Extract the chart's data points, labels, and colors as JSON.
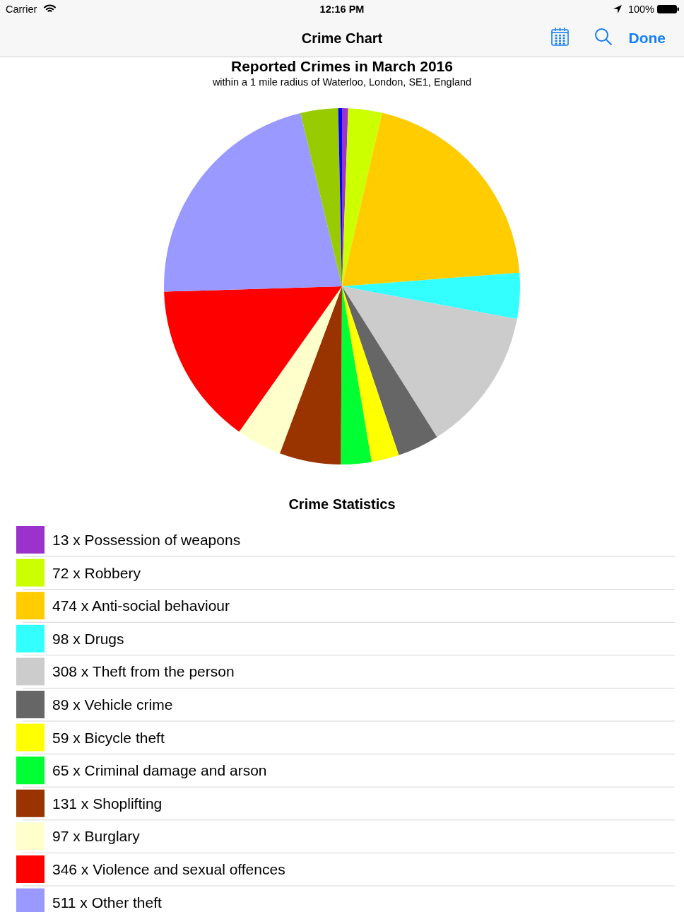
{
  "chart_data": {
    "type": "pie",
    "title": "Reported Crimes in March 2016",
    "subtitle": "within a 1 mile radius of Waterloo, London, SE1, England",
    "legend_title": "Crime Statistics",
    "legend": "bottom",
    "categories": [
      "13 x Possession of weapons",
      "72 x Robbery",
      "474 x Anti-social behaviour",
      "98 x Drugs",
      "308 x Theft from the person",
      "89 x Vehicle crime",
      "59 x Bicycle theft",
      "65 x Criminal damage and arson",
      "131 x Shoplifting",
      "97 x Burglary",
      "346 x Violence and sexual offences",
      "511 x Other theft",
      null,
      null
    ],
    "values": [
      13,
      72,
      474,
      98,
      308,
      89,
      59,
      65,
      131,
      97,
      346,
      511,
      80,
      8
    ],
    "colors": [
      "#9933cc",
      "#ccff00",
      "#ffcc00",
      "#33ffff",
      "#cccccc",
      "#666666",
      "#ffff00",
      "#00ff33",
      "#993300",
      "#ffffcc",
      "#ff0000",
      "#9999ff",
      "#99cc00",
      "#0000ff"
    ],
    "annotations": [
      "Carrier",
      "12:16 PM",
      "100%",
      "Crime Chart",
      "Done"
    ]
  }
}
